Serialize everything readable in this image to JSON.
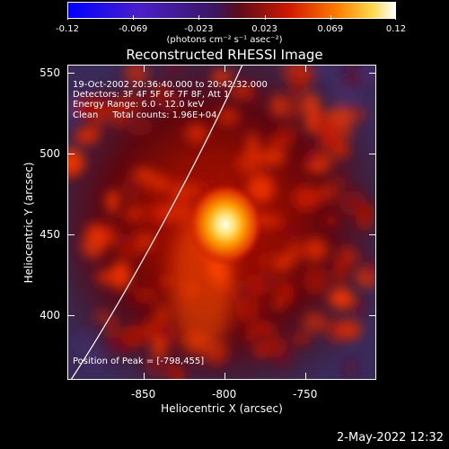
{
  "colorbar": {
    "tick_labels": [
      "-0.12",
      "-0.069",
      "-0.023",
      "0.023",
      "0.069",
      "0.12"
    ],
    "units": "(photons cm⁻² s⁻¹ asec⁻²)",
    "range": [
      -0.12,
      0.12
    ]
  },
  "title": "Reconstructed RHESSI Image",
  "info": {
    "time_range": "19-Oct-2002 20:36:40.000 to 20:42:32.000",
    "detectors": "Detectors: 3F 4F 5F 6F 7F 8F, Att 1",
    "energy": "Energy Range: 6.0 - 12.0 keV",
    "clean": "Clean     Total counts: 1.96E+04",
    "peak": "Position of Peak = [-798,455]"
  },
  "axes": {
    "xlabel": "Heliocentric X (arcsec)",
    "ylabel": "Heliocentric Y (arcsec)",
    "xlim": [
      -897,
      -706
    ],
    "ylim": [
      360,
      555
    ],
    "x_ticks": [
      "-850",
      "-800",
      "-750"
    ],
    "x_tick_values": [
      -850,
      -800,
      -750
    ],
    "y_ticks": [
      "550",
      "500",
      "450",
      "400"
    ],
    "y_tick_values": [
      550,
      500,
      450,
      400
    ]
  },
  "source": {
    "peak_x": -798,
    "peak_y": 455
  },
  "footer": {
    "date": "2-May-2022 12:32"
  }
}
